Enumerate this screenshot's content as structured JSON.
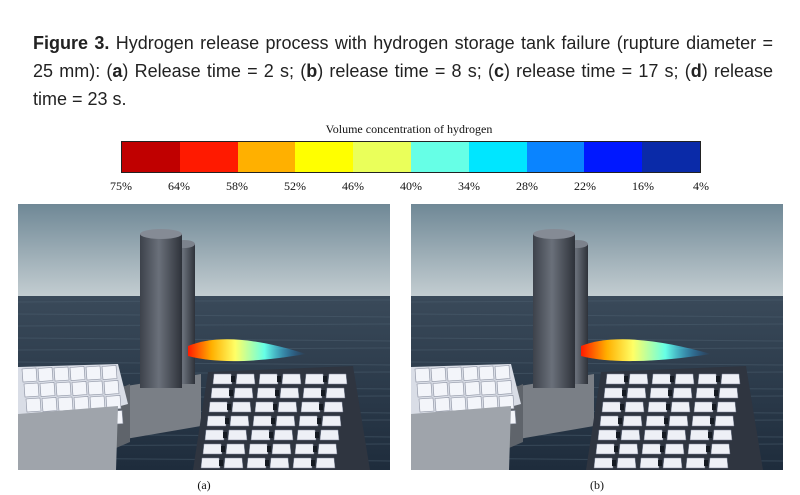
{
  "caption": {
    "label": "Figure 3.",
    "text_1": " Hydrogen release process with hydrogen storage tank failure (rupture diameter = 25 mm): (",
    "a": "a",
    "text_2": ") Release time = 2 s; (",
    "b": "b",
    "text_3": ") release time = 8 s; (",
    "c": "c",
    "text_4": ") release time = 17 s; (",
    "d": "d",
    "text_5": ") release time = 23 s."
  },
  "colorbar": {
    "title": "Volume concentration of hydrogen",
    "colors": [
      "#c00000",
      "#ff1a00",
      "#ffb000",
      "#ffff00",
      "#eaff5a",
      "#66ffe6",
      "#00e6ff",
      "#0a84ff",
      "#0018ff",
      "#0a2aa8"
    ],
    "ticks": [
      "75%",
      "64%",
      "58%",
      "52%",
      "46%",
      "40%",
      "34%",
      "28%",
      "22%",
      "16%",
      "4%"
    ]
  },
  "panels": [
    {
      "label": "(a)",
      "plume": "short"
    },
    {
      "label": "(b)",
      "plume": "long"
    }
  ]
}
